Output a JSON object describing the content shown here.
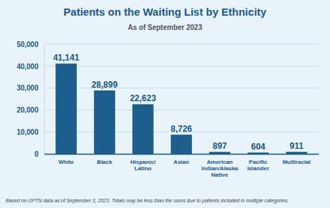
{
  "chart_data": {
    "type": "bar",
    "title": "Patients on the Waiting List by Ethnicity",
    "subtitle": "As of September 2023",
    "categories": [
      "White",
      "Black",
      "Hispanic/Latino",
      "Asian",
      "American Indian/Alaska Native",
      "Pacific Islander",
      "Multiracial"
    ],
    "values": [
      41141,
      28899,
      22623,
      8726,
      897,
      604,
      911
    ],
    "value_labels": [
      "41,141",
      "28,899",
      "22,623",
      "8,726",
      "897",
      "604",
      "911"
    ],
    "color": "#1c5f8f",
    "ylim": [
      0,
      50000
    ],
    "yticks": [
      0,
      {
        "value": 10000,
        "label": "10,000"
      },
      {
        "value": 20000,
        "label": "20,000"
      },
      {
        "value": 30000,
        "label": "30,000"
      },
      {
        "value": 40000,
        "label": "40,000"
      },
      {
        "value": 50000,
        "label": "50,000"
      }
    ],
    "grid": true,
    "data_labels": true,
    "annotations": [
      "Based on OPTN data as of September 3, 2023. Totals may be less than the sums due to patients included in multiple categories."
    ]
  }
}
